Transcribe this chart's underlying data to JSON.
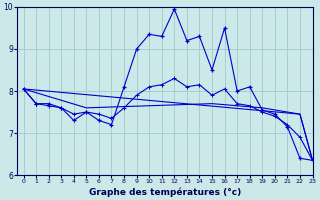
{
  "xlabel": "Graphe des températures (°c)",
  "background_color": "#cce8e8",
  "line_color": "#0000cc",
  "grid_color": "#99cccc",
  "xlim": [
    -0.5,
    23
  ],
  "ylim": [
    6,
    10
  ],
  "yticks": [
    6,
    7,
    8,
    9,
    10
  ],
  "xticks": [
    0,
    1,
    2,
    3,
    4,
    5,
    6,
    7,
    8,
    9,
    10,
    11,
    12,
    13,
    14,
    15,
    16,
    17,
    18,
    19,
    20,
    21,
    22,
    23
  ],
  "series1_x": [
    0,
    1,
    2,
    3,
    4,
    5,
    6,
    7,
    8,
    9,
    10,
    11,
    12,
    13,
    14,
    15,
    16,
    17,
    18,
    19,
    20,
    21,
    22,
    23
  ],
  "series1_y": [
    8.05,
    7.7,
    7.7,
    7.6,
    7.3,
    7.5,
    7.3,
    7.2,
    8.1,
    9.0,
    9.35,
    9.3,
    9.95,
    9.2,
    9.3,
    8.5,
    9.5,
    8.0,
    8.1,
    7.55,
    7.45,
    7.15,
    6.4,
    6.35
  ],
  "series2_x": [
    0,
    22,
    23
  ],
  "series2_y": [
    8.05,
    7.45,
    6.35
  ],
  "series3_x": [
    0,
    5,
    10,
    15,
    19,
    22,
    23
  ],
  "series3_y": [
    8.05,
    7.6,
    7.65,
    7.7,
    7.6,
    7.45,
    6.35
  ],
  "series4_x": [
    0,
    1,
    2,
    3,
    4,
    5,
    6,
    7,
    8,
    9,
    10,
    11,
    12,
    13,
    14,
    15,
    16,
    17,
    18,
    19,
    20,
    21,
    22,
    23
  ],
  "series4_y": [
    8.05,
    7.7,
    7.65,
    7.6,
    7.45,
    7.5,
    7.45,
    7.35,
    7.6,
    7.9,
    8.1,
    8.15,
    8.3,
    8.1,
    8.15,
    7.9,
    8.05,
    7.7,
    7.65,
    7.5,
    7.4,
    7.2,
    6.9,
    6.35
  ]
}
